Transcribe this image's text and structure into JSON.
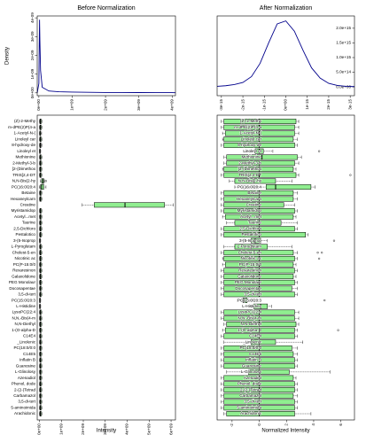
{
  "chart_data": [
    {
      "type": "line",
      "title": "Before Normalization",
      "ylabel": "Density",
      "color": "#00008b",
      "x": [
        -50000000.0,
        0,
        10000000.0,
        20000000.0,
        30000000.0,
        50000000.0,
        100000000.0,
        300000000.0,
        600000000.0,
        1000000000.0,
        1500000000.0,
        2000000000.0,
        2500000000.0,
        3000000000.0,
        3500000000.0,
        4000000000.0,
        4100000000.0
      ],
      "values": [
        0,
        5e-10,
        2.5e-09,
        3.9e-09,
        2.8e-09,
        1.2e-09,
        3e-10,
        1e-10,
        6e-11,
        4e-11,
        3e-11,
        2e-11,
        2e-11,
        1.5e-11,
        1e-11,
        1e-11,
        5e-12
      ],
      "xlim": [
        -50000000.0,
        4100000000.0
      ],
      "xticks": [
        {
          "value": 0,
          "label": "0e+00"
        },
        {
          "value": 1000000000.0,
          "label": "1e+09"
        },
        {
          "value": 2000000000.0,
          "label": "2e+09"
        },
        {
          "value": 3000000000.0,
          "label": "3e+09"
        },
        {
          "value": 4000000000.0,
          "label": "4e+09"
        }
      ],
      "ylim": [
        -1.5e-10,
        4.1e-09
      ],
      "yticks": [
        {
          "value": 0,
          "label": "0e+00"
        },
        {
          "value": 1e-09,
          "label": "1e-09"
        },
        {
          "value": 2e-09,
          "label": "2e-09"
        },
        {
          "value": 3e-09,
          "label": "3e-09"
        },
        {
          "value": 4e-09,
          "label": "4e-09"
        }
      ]
    },
    {
      "type": "line",
      "title": "After Normalization",
      "color": "#00008b",
      "x": [
        -3.2e-15,
        -2.8e-15,
        -2.4e-15,
        -2e-15,
        -1.6e-15,
        -1.2e-15,
        -8e-16,
        -4e-16,
        0,
        4e-16,
        8e-16,
        1.2e-15,
        1.6e-15,
        2e-15,
        2.4e-15,
        2.8e-15,
        3.2e-15
      ],
      "values": [
        20000000000000.0,
        40000000000000.0,
        80000000000000.0,
        150000000000000.0,
        350000000000000.0,
        800000000000000.0,
        1500000000000000.0,
        2150000000000000.0,
        2250000000000000.0,
        1900000000000000.0,
        1250000000000000.0,
        650000000000000.0,
        300000000000000.0,
        120000000000000.0,
        50000000000000.0,
        20000000000000.0,
        10000000000000.0
      ],
      "xlim": [
        -3.2e-15,
        3.2e-15
      ],
      "xticks": [
        {
          "value": -3e-15,
          "label": "-3e-15"
        },
        {
          "value": -2e-15,
          "label": "-2e-15"
        },
        {
          "value": -1e-15,
          "label": "-1e-15"
        },
        {
          "value": 0,
          "label": "0e+00"
        },
        {
          "value": 1e-15,
          "label": "1e-15"
        },
        {
          "value": 2e-15,
          "label": "2e-15"
        },
        {
          "value": 3e-15,
          "label": "3e-15"
        }
      ],
      "ylim": [
        -300000000000000.0,
        2420000000000000.0
      ],
      "yticks": [
        {
          "value": 0,
          "label": "0.0e+00"
        },
        {
          "value": 500000000000000.0,
          "label": "5.0e+14"
        },
        {
          "value": 1000000000000000.0,
          "label": "1.0e+15"
        },
        {
          "value": 1500000000000000.0,
          "label": "1.5e+15"
        },
        {
          "value": 2000000000000000.0,
          "label": "2.0e+15"
        }
      ]
    },
    {
      "type": "box",
      "xlabel": "Intensity",
      "color": "#90ee90",
      "categories": [
        "(Z)-2-Methy",
        "m-dPE(2)P(4-a",
        "1-Acetyl-N-(",
        "Linoleyl car",
        "8-hydroxy-de",
        "Linoleyl et",
        "Methionine",
        "2-Methyl-3-b",
        "[2-(Dimethox",
        "TRIS[2,4-DT",
        "N,N-Bis(2-hy",
        "PC(16:0/20:4",
        "Betaine",
        "Hexaneylcarn",
        "Creatine",
        "Myristamidop",
        "Acetyl...met",
        "Taurine",
        "2,5-Dichloro",
        "Pestalotico",
        "3-(5-Isoprop",
        "L-Pyroglutam",
        "Cholest-5-en",
        "Nicotinic ac",
        "PC(P-15:0/0",
        "Rexaresinon",
        "Galaxolidone",
        "PEG Monolaur",
        "Docosapentae",
        "3,5-di-tert",
        "PC(15:0/20:3",
        "L-Histidine",
        "LysoPC(22:4",
        "N,N,-Bis(4-m",
        "N,N-Diethyl",
        "1-(O-alpha-D",
        "C14E4",
        "_Linolenic",
        "PC(18:0/0:0",
        "C14E5",
        "Inflatin B",
        "Guanosine",
        "L-Glinolosy",
        "Azenadiol",
        "Phenol, dode",
        "2-(2-(Tetrad",
        "Carbamazol",
        "3,5-di-tert",
        "5-aminoimida",
        "Arachidonic"
      ],
      "boxes": [
        [
          0,
          20000000.0,
          40000000.0,
          80000000.0,
          120000000.0
        ],
        [
          0,
          20000000.0,
          40000000.0,
          80000000.0,
          120000000.0
        ],
        [
          0,
          20000000.0,
          30000000.0,
          60000000.0,
          100000000.0
        ],
        [
          0,
          20000000.0,
          40000000.0,
          80000000.0,
          120000000.0
        ],
        [
          0,
          20000000.0,
          40000000.0,
          70000000.0,
          110000000.0
        ],
        [
          0,
          10000000.0,
          20000000.0,
          40000000.0,
          60000000.0
        ],
        [
          0,
          20000000.0,
          40000000.0,
          80000000.0,
          120000000.0
        ],
        [
          0,
          20000000.0,
          40000000.0,
          80000000.0,
          120000000.0
        ],
        [
          0,
          20000000.0,
          40000000.0,
          80000000.0,
          120000000.0
        ],
        [
          0,
          20000000.0,
          40000000.0,
          80000000.0,
          120000000.0
        ],
        [
          50000000.0,
          100000000.0,
          150000000.0,
          200000000.0,
          250000000.0
        ],
        [
          0,
          50000000.0,
          100000000.0,
          200000000.0,
          300000000.0
        ],
        [
          0,
          20000000.0,
          40000000.0,
          80000000.0,
          120000000.0
        ],
        [
          0,
          20000000.0,
          40000000.0,
          80000000.0,
          120000000.0
        ],
        [
          1950000000.0,
          2500000000.0,
          3900000000.0,
          5700000000.0,
          6100000000.0
        ],
        [
          0,
          20000000.0,
          40000000.0,
          80000000.0,
          120000000.0
        ],
        [
          0,
          20000000.0,
          40000000.0,
          80000000.0,
          120000000.0
        ],
        [
          0,
          20000000.0,
          40000000.0,
          80000000.0,
          120000000.0
        ],
        [
          0,
          20000000.0,
          40000000.0,
          80000000.0,
          120000000.0
        ],
        [
          0,
          20000000.0,
          40000000.0,
          80000000.0,
          120000000.0
        ],
        [
          0,
          10000000.0,
          20000000.0,
          40000000.0,
          60000000.0
        ],
        [
          0,
          20000000.0,
          40000000.0,
          80000000.0,
          120000000.0
        ],
        [
          0,
          20000000.0,
          40000000.0,
          80000000.0,
          120000000.0
        ],
        [
          0,
          20000000.0,
          40000000.0,
          80000000.0,
          120000000.0
        ],
        [
          0,
          20000000.0,
          40000000.0,
          80000000.0,
          120000000.0
        ],
        [
          0,
          20000000.0,
          40000000.0,
          80000000.0,
          120000000.0
        ],
        [
          0,
          20000000.0,
          40000000.0,
          80000000.0,
          120000000.0
        ],
        [
          0,
          20000000.0,
          40000000.0,
          80000000.0,
          120000000.0
        ],
        [
          0,
          20000000.0,
          40000000.0,
          80000000.0,
          120000000.0
        ],
        [
          0,
          20000000.0,
          40000000.0,
          80000000.0,
          120000000.0
        ],
        [
          0,
          10000000.0,
          20000000.0,
          40000000.0,
          60000000.0
        ],
        [
          0,
          10000000.0,
          20000000.0,
          40000000.0,
          60000000.0
        ],
        [
          0,
          20000000.0,
          40000000.0,
          80000000.0,
          120000000.0
        ],
        [
          0,
          20000000.0,
          40000000.0,
          80000000.0,
          120000000.0
        ],
        [
          0,
          20000000.0,
          40000000.0,
          80000000.0,
          120000000.0
        ],
        [
          0,
          20000000.0,
          40000000.0,
          80000000.0,
          120000000.0
        ],
        [
          0,
          20000000.0,
          40000000.0,
          80000000.0,
          120000000.0
        ],
        [
          0,
          20000000.0,
          40000000.0,
          80000000.0,
          120000000.0
        ],
        [
          0,
          20000000.0,
          40000000.0,
          80000000.0,
          120000000.0
        ],
        [
          0,
          20000000.0,
          40000000.0,
          80000000.0,
          120000000.0
        ],
        [
          0,
          20000000.0,
          40000000.0,
          80000000.0,
          120000000.0
        ],
        [
          0,
          20000000.0,
          40000000.0,
          80000000.0,
          120000000.0
        ],
        [
          0,
          20000000.0,
          40000000.0,
          80000000.0,
          120000000.0
        ],
        [
          0,
          20000000.0,
          40000000.0,
          80000000.0,
          120000000.0
        ],
        [
          0,
          20000000.0,
          40000000.0,
          80000000.0,
          120000000.0
        ],
        [
          0,
          20000000.0,
          40000000.0,
          80000000.0,
          120000000.0
        ],
        [
          0,
          20000000.0,
          40000000.0,
          80000000.0,
          120000000.0
        ],
        [
          0,
          20000000.0,
          40000000.0,
          80000000.0,
          120000000.0
        ],
        [
          0,
          20000000.0,
          40000000.0,
          80000000.0,
          120000000.0
        ],
        [
          0,
          20000000.0,
          40000000.0,
          80000000.0,
          120000000.0
        ]
      ],
      "outliers": [
        [],
        [],
        [],
        [],
        [],
        [],
        [],
        [],
        [],
        [],
        [
          300000000.0
        ],
        [],
        [],
        [],
        [],
        [],
        [],
        [],
        [],
        [],
        [],
        [],
        [],
        [],
        [],
        [],
        [],
        [],
        [],
        [],
        [],
        [],
        [],
        [],
        [],
        [],
        [],
        [],
        [],
        [],
        [],
        [],
        [],
        [],
        [],
        [],
        [],
        [],
        [],
        []
      ],
      "xlim": [
        -100000000.0,
        6200000000.0
      ],
      "xticks": [
        {
          "value": 0,
          "label": "0e+00"
        },
        {
          "value": 1000000000.0,
          "label": "1e+09"
        },
        {
          "value": 2000000000.0,
          "label": "2e+09"
        },
        {
          "value": 3000000000.0,
          "label": "3e+09"
        },
        {
          "value": 4000000000.0,
          "label": "4e+09"
        },
        {
          "value": 5000000000.0,
          "label": "5e+09"
        },
        {
          "value": 6000000000.0,
          "label": "6e+09"
        }
      ]
    },
    {
      "type": "box",
      "xlabel": "Normalized Intensity",
      "color": "#90ee90",
      "categories": [
        "(Z)-2-Methy",
        "m-dPE(2)P(4-a",
        "1-Acetyl-N-(",
        "Linoleyl car",
        "8-hydroxy-de",
        "Linoleyl et",
        "Methionine",
        "2-Methyl-3-b",
        "[2-(Dimethox",
        "TRIS[2,4-DT",
        "N,N-Bis(2-hy",
        "PC(16:0/20:4",
        "Betaine",
        "Hexaneylcarn",
        "Creatine",
        "Myristamidop",
        "Acetyl...met",
        "Taurine",
        "2,5-Dichloro",
        "Pestalotico",
        "3-(5-Isoprop",
        "L-Pyroglutam",
        "Cholest-5-en",
        "Nicotinic ac",
        "PC(P-15:0/0",
        "Rexaresinon",
        "Galaxolidone",
        "PEG Monolaur",
        "Docosapentae",
        "3,5-di-tert",
        "PC(15:0/20:3",
        "L-Histidine",
        "LysoPC(22:4",
        "N,N,-Bis(4-m",
        "N,N-Diethyl",
        "1-(O-alpha-D",
        "C14E4",
        "_Linolenic",
        "PC(18:0/0:0",
        "C14E5",
        "Inflatin B",
        "Guanosine",
        "L-Glinolosy",
        "Azenadiol",
        "Phenol, dode",
        "2-(2-(Tetrad",
        "Carbamazol",
        "3,5-di-tert",
        "5-aminoimida",
        "Arachidonic"
      ],
      "boxes": [
        [
          -2.8,
          -2.6,
          0,
          2.7,
          2.9
        ],
        [
          -2.8,
          -2.6,
          0,
          2.6,
          2.9
        ],
        [
          -2.7,
          -2.5,
          0,
          2.6,
          2.9
        ],
        [
          -2.7,
          -2.6,
          0,
          2.5,
          2.8
        ],
        [
          -2.8,
          -2.6,
          0,
          2.6,
          2.8
        ],
        [
          -1,
          -0.3,
          0,
          0.3,
          1
        ],
        [
          -2.6,
          -2.4,
          0.2,
          2.8,
          3.1
        ],
        [
          -2.6,
          -2.4,
          0,
          2.6,
          2.9
        ],
        [
          -2.7,
          -2.6,
          0,
          2.5,
          2.7
        ],
        [
          -2.8,
          -2.6,
          0,
          2.7,
          2.9
        ],
        [
          -2.2,
          -1.8,
          -0.4,
          1.2,
          2.4
        ],
        [
          -1.8,
          0.5,
          1.2,
          3.8,
          4.1
        ],
        [
          -2.8,
          -2.6,
          0,
          2.5,
          2.8
        ],
        [
          -2.8,
          -2.6,
          0,
          2.5,
          2.8
        ],
        [
          -2.8,
          -2.6,
          0,
          1.8,
          2.6
        ],
        [
          -2.8,
          -2.6,
          0,
          2.6,
          2.8
        ],
        [
          -2.7,
          -2.5,
          0,
          2.5,
          2.7
        ],
        [
          -2.4,
          -1.8,
          0,
          1.6,
          2.8
        ],
        [
          -2.8,
          -2.6,
          0,
          2.6,
          2.8
        ],
        [
          -2.8,
          -2.6,
          0,
          3.4,
          3.6
        ],
        [
          -1.2,
          -0.6,
          -0.3,
          0.1,
          0.6
        ],
        [
          -2.6,
          -1.8,
          -0.6,
          0.6,
          2.4
        ],
        [
          -2.8,
          -2.6,
          0,
          2.5,
          2.8
        ],
        [
          -2.7,
          -2.6,
          0,
          2.6,
          2.8
        ],
        [
          -2.7,
          -2.5,
          0,
          2.5,
          2.7
        ],
        [
          -2.8,
          -2.6,
          0,
          2.6,
          2.8
        ],
        [
          -2.8,
          -2.6,
          0,
          2.5,
          2.7
        ],
        [
          -2.8,
          -2.6,
          0,
          2.6,
          2.8
        ],
        [
          -2.8,
          -2.6,
          0,
          2.4,
          2.8
        ],
        [
          -2.8,
          -2.6,
          0,
          2.6,
          2.8
        ],
        [
          -1.6,
          -1.2,
          -1.1,
          -0.9,
          -0.6
        ],
        [
          -0.6,
          -0.4,
          0.1,
          0.6,
          0.9
        ],
        [
          -2.8,
          -2.6,
          0,
          2.6,
          2.9
        ],
        [
          -2.8,
          -2.6,
          0,
          2.6,
          2.9
        ],
        [
          -2.6,
          -2.4,
          0,
          2.7,
          2.9
        ],
        [
          -2.7,
          -2.5,
          0,
          2.6,
          2.8
        ],
        [
          -2.8,
          -2.6,
          0,
          2.6,
          2.8
        ],
        [
          -2.6,
          -0.6,
          0,
          1.2,
          3.2
        ],
        [
          -2.8,
          -2.6,
          0,
          2.4,
          2.8
        ],
        [
          -2.8,
          -2.6,
          0,
          2.5,
          2.8
        ],
        [
          -2.8,
          -2.6,
          0,
          2.6,
          2.8
        ],
        [
          -2.8,
          -2.6,
          0,
          2.6,
          2.8
        ],
        [
          -2.4,
          -0.8,
          0,
          2.2,
          5.2
        ],
        [
          -2.8,
          -2.6,
          0,
          2.5,
          2.7
        ],
        [
          -2.8,
          -2.6,
          0,
          2.6,
          2.8
        ],
        [
          -2.8,
          -2.6,
          0,
          2.6,
          2.8
        ],
        [
          -2.8,
          -2.6,
          0,
          2.5,
          2.8
        ],
        [
          -2.8,
          -2.6,
          0,
          2.6,
          2.8
        ],
        [
          -2.8,
          -2.6,
          0,
          2.6,
          2.8
        ],
        [
          -2.6,
          -2.4,
          0,
          2.6,
          3.8
        ]
      ],
      "outliers": [
        [],
        [],
        [],
        [],
        [],
        [
          4.4
        ],
        [],
        [],
        [],
        [
          6.7
        ],
        [],
        [],
        [],
        [],
        [],
        [],
        [],
        [],
        [],
        [],
        [
          5.5
        ],
        [],
        [
          4.3,
          4.6
        ],
        [
          4.4
        ],
        [],
        [],
        [],
        [],
        [],
        [],
        [
          4.8
        ],
        [],
        [],
        [],
        [],
        [
          5.8
        ],
        [],
        [],
        [],
        [],
        [],
        [],
        [],
        [],
        [],
        [],
        [],
        [],
        [],
        []
      ],
      "xlim": [
        -3.1,
        7
      ],
      "xticks": [
        -2,
        0,
        2,
        4,
        6
      ]
    }
  ]
}
